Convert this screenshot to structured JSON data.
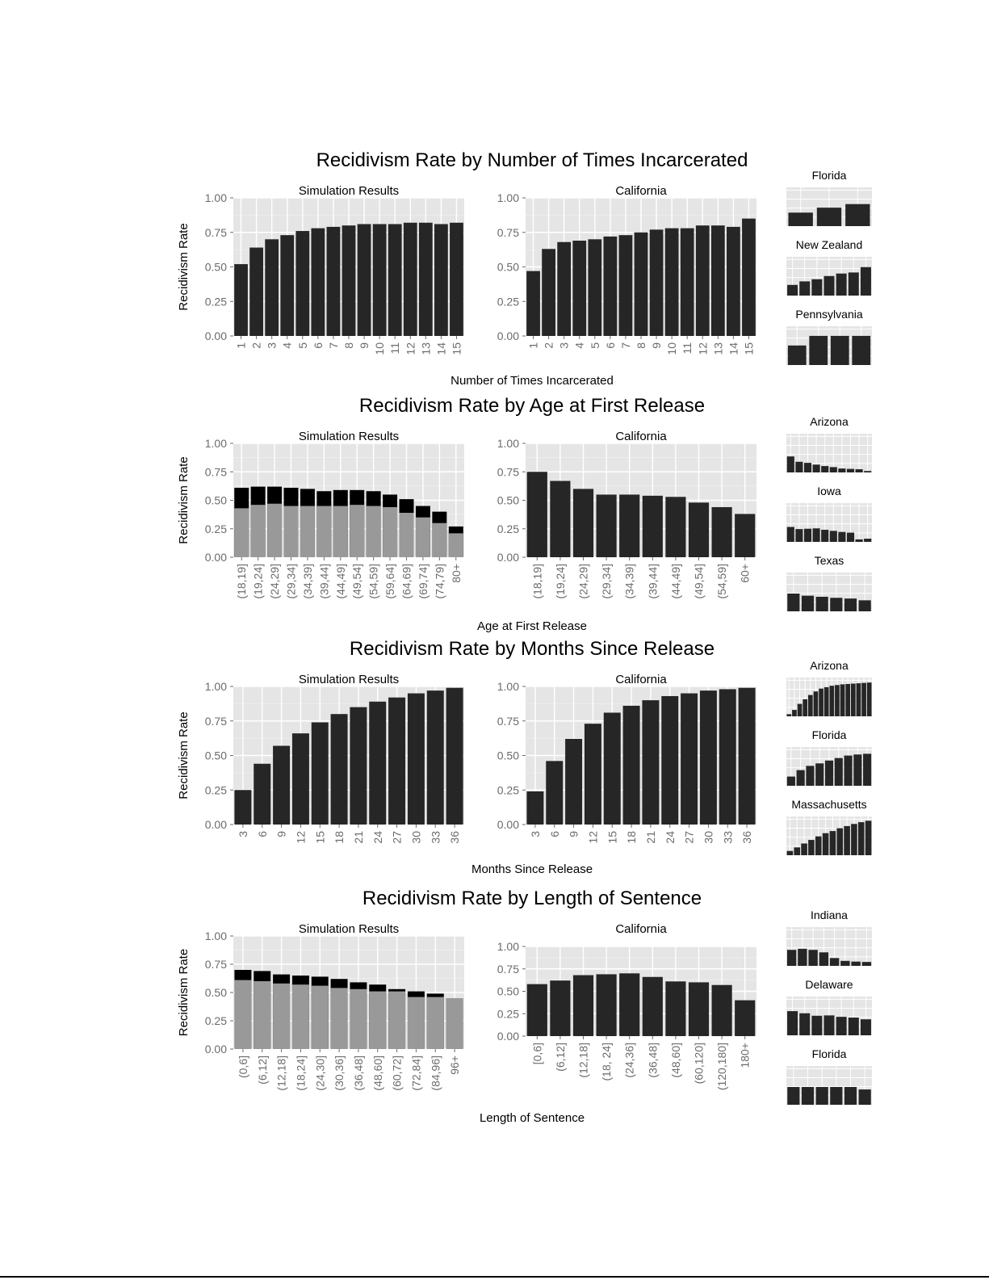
{
  "colors": {
    "panel_bg": "#e5e5e5",
    "grid": "#ffffff",
    "bar_dark": "#262626",
    "bar_black": "#000000",
    "bar_light": "#999999",
    "tick_text": "#6b6b6b",
    "text": "#000000"
  },
  "chart_data": [
    {
      "type": "bar",
      "title": "Recidivism Rate by Number of Times Incarcerated",
      "xlabel": "Number of Times Incarcerated",
      "ylabel": "Recidivism Rate",
      "ylim": [
        0,
        1
      ],
      "yticks": [
        "0.00",
        "0.25",
        "0.50",
        "0.75",
        "1.00"
      ],
      "grid": true,
      "panels": [
        {
          "title": "Simulation Results",
          "categories": [
            "1",
            "2",
            "3",
            "4",
            "5",
            "6",
            "7",
            "8",
            "9",
            "10",
            "11",
            "12",
            "13",
            "14",
            "15"
          ],
          "series": [
            {
              "values": [
                0.52,
                0.64,
                0.7,
                0.73,
                0.76,
                0.78,
                0.79,
                0.8,
                0.81,
                0.81,
                0.81,
                0.82,
                0.82,
                0.81,
                0.82
              ]
            }
          ]
        },
        {
          "title": "California",
          "categories": [
            "1",
            "2",
            "3",
            "4",
            "5",
            "6",
            "7",
            "8",
            "9",
            "10",
            "11",
            "12",
            "13",
            "14",
            "15"
          ],
          "series": [
            {
              "values": [
                0.47,
                0.63,
                0.68,
                0.69,
                0.7,
                0.72,
                0.73,
                0.75,
                0.77,
                0.78,
                0.78,
                0.8,
                0.8,
                0.79,
                0.85
              ]
            }
          ]
        }
      ],
      "mini_panels": [
        {
          "title": "Florida",
          "values": [
            0.38,
            0.52,
            0.62
          ]
        },
        {
          "title": "New Zealand",
          "values": [
            0.3,
            0.4,
            0.46,
            0.55,
            0.62,
            0.65,
            0.8
          ]
        },
        {
          "title": "Pennsylvania",
          "values": [
            0.55,
            0.82,
            0.82,
            0.82
          ]
        }
      ]
    },
    {
      "type": "bar",
      "title": "Recidivism Rate by Age at First Release",
      "xlabel": "Age at First Release",
      "ylabel": "Recidivism Rate",
      "ylim": [
        0,
        1
      ],
      "yticks": [
        "0.00",
        "0.25",
        "0.50",
        "0.75",
        "1.00"
      ],
      "grid": true,
      "panels": [
        {
          "title": "Simulation Results",
          "categories": [
            "(18,19]",
            "(19,24]",
            "(24,29]",
            "(29,34]",
            "(34,39]",
            "(39,44]",
            "(44,49]",
            "(49,54]",
            "(54,59]",
            "(59,64]",
            "(64,69]",
            "(69,74]",
            "(74,79]",
            "80+"
          ],
          "series": [
            {
              "values": [
                0.61,
                0.62,
                0.62,
                0.61,
                0.6,
                0.58,
                0.59,
                0.59,
                0.58,
                0.55,
                0.51,
                0.45,
                0.4,
                0.27
              ]
            },
            {
              "values": [
                0.43,
                0.46,
                0.47,
                0.45,
                0.45,
                0.45,
                0.45,
                0.46,
                0.45,
                0.44,
                0.39,
                0.35,
                0.3,
                0.21
              ]
            }
          ]
        },
        {
          "title": "California",
          "categories": [
            "(18,19]",
            "(19,24]",
            "(24,29]",
            "(29,34]",
            "(34,39]",
            "(39,44]",
            "(44,49]",
            "(49,54]",
            "(54,59]",
            "60+"
          ],
          "series": [
            {
              "values": [
                0.75,
                0.67,
                0.6,
                0.55,
                0.55,
                0.54,
                0.53,
                0.48,
                0.44,
                0.38
              ]
            }
          ]
        }
      ],
      "mini_panels": [
        {
          "title": "Arizona",
          "values": [
            0.45,
            0.3,
            0.27,
            0.22,
            0.18,
            0.15,
            0.11,
            0.1,
            0.09,
            0.04
          ]
        },
        {
          "title": "Iowa",
          "values": [
            0.42,
            0.36,
            0.37,
            0.38,
            0.34,
            0.31,
            0.28,
            0.26,
            0.07,
            0.09
          ]
        },
        {
          "title": "Texas",
          "values": [
            0.5,
            0.44,
            0.41,
            0.38,
            0.36,
            0.31
          ]
        }
      ]
    },
    {
      "type": "bar",
      "title": "Recidivism Rate by Months Since Release",
      "xlabel": "Months Since Release",
      "ylabel": "Recidivism Rate",
      "ylim": [
        0,
        1
      ],
      "yticks": [
        "0.00",
        "0.25",
        "0.50",
        "0.75",
        "1.00"
      ],
      "grid": true,
      "panels": [
        {
          "title": "Simulation Results",
          "categories": [
            "3",
            "6",
            "9",
            "12",
            "15",
            "18",
            "21",
            "24",
            "27",
            "30",
            "33",
            "36"
          ],
          "series": [
            {
              "values": [
                0.25,
                0.44,
                0.57,
                0.66,
                0.74,
                0.8,
                0.85,
                0.89,
                0.92,
                0.95,
                0.97,
                0.99
              ]
            }
          ]
        },
        {
          "title": "California",
          "categories": [
            "3",
            "6",
            "9",
            "12",
            "15",
            "18",
            "21",
            "24",
            "27",
            "30",
            "33",
            "36"
          ],
          "series": [
            {
              "values": [
                0.24,
                0.46,
                0.62,
                0.73,
                0.81,
                0.86,
                0.9,
                0.93,
                0.95,
                0.97,
                0.98,
                0.99
              ]
            }
          ]
        }
      ],
      "mini_panels": [
        {
          "title": "Arizona",
          "values": [
            0.06,
            0.18,
            0.35,
            0.48,
            0.6,
            0.7,
            0.78,
            0.82,
            0.86,
            0.88,
            0.9,
            0.91,
            0.92,
            0.93,
            0.94,
            0.95
          ]
        },
        {
          "title": "Florida",
          "values": [
            0.26,
            0.44,
            0.56,
            0.63,
            0.71,
            0.78,
            0.85,
            0.88,
            0.9
          ]
        },
        {
          "title": "Massachusetts",
          "values": [
            0.12,
            0.22,
            0.33,
            0.43,
            0.53,
            0.62,
            0.68,
            0.76,
            0.82,
            0.88,
            0.93,
            0.97
          ]
        }
      ]
    },
    {
      "type": "bar",
      "title": "Recidivism Rate by Length of Sentence",
      "xlabel": "Length of Sentence",
      "ylabel": "Recidivism Rate",
      "ylim": [
        0,
        1
      ],
      "yticks": [
        "0.00",
        "0.25",
        "0.50",
        "0.75",
        "1.00"
      ],
      "grid": true,
      "panels": [
        {
          "title": "Simulation Results",
          "categories": [
            "(0,6]",
            "(6,12]",
            "(12,18]",
            "(18,24]",
            "(24,30]",
            "(30,36]",
            "(36,48]",
            "(48,60]",
            "(60,72]",
            "(72,84]",
            "(84,96]",
            "96+"
          ],
          "series": [
            {
              "values": [
                0.7,
                0.69,
                0.66,
                0.65,
                0.64,
                0.62,
                0.59,
                0.57,
                0.53,
                0.51,
                0.49,
                0.45
              ]
            },
            {
              "values": [
                0.61,
                0.6,
                0.58,
                0.57,
                0.56,
                0.54,
                0.53,
                0.51,
                0.51,
                0.46,
                0.46,
                0.45
              ]
            }
          ]
        },
        {
          "title": "California",
          "categories": [
            "[0,6]",
            "(6,12]",
            "(12,18]",
            "(18, 24]",
            "(24,36]",
            "(36,48]",
            "(48,60]",
            "(60,120]",
            "(120,180]",
            "180+"
          ],
          "series": [
            {
              "values": [
                0.58,
                0.62,
                0.68,
                0.69,
                0.7,
                0.66,
                0.61,
                0.6,
                0.57,
                0.4
              ]
            }
          ]
        }
      ],
      "mini_panels": [
        {
          "title": "Indiana",
          "values": [
            0.45,
            0.48,
            0.45,
            0.38,
            0.22,
            0.14,
            0.12,
            0.11
          ]
        },
        {
          "title": "Delaware",
          "values": [
            0.68,
            0.62,
            0.55,
            0.56,
            0.52,
            0.5,
            0.45
          ]
        },
        {
          "title": "Florida",
          "values": [
            0.5,
            0.5,
            0.5,
            0.5,
            0.5,
            0.43
          ]
        }
      ]
    }
  ]
}
